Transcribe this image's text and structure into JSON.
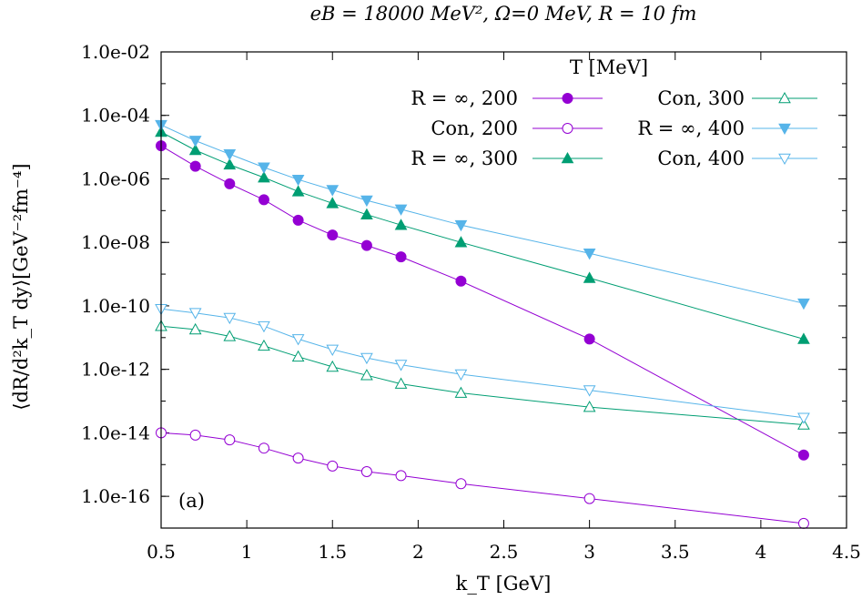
{
  "chart_data": {
    "type": "line",
    "title": "eB = 18000 MeV², Ω=0 MeV, R = 10 fm",
    "xlabel": "k_T [GeV]",
    "ylabel": "⟨dR/d²k_T dy⟩[GeV⁻²fm⁻⁴]",
    "panel_label": "(a)",
    "legend_title": "T [MeV]",
    "legend_placement": "top-right",
    "yscale": "log",
    "xlim": [
      0.5,
      4.5
    ],
    "ylim": [
      1e-17,
      0.01
    ],
    "x_ticks": [
      "0.5",
      "1",
      "1.5",
      "2",
      "2.5",
      "3",
      "3.5",
      "4",
      "4.5"
    ],
    "y_ticks": [
      "1.0e-16",
      "1.0e-14",
      "1.0e-12",
      "1.0e-10",
      "1.0e-08",
      "1.0e-06",
      "1.0e-04",
      "1.0e-02"
    ],
    "x": [
      0.5,
      0.7,
      0.9,
      1.1,
      1.3,
      1.5,
      1.7,
      1.9,
      2.25,
      3.0,
      4.25
    ],
    "series": [
      {
        "name": "R = ∞, 200",
        "color": "#9400d3",
        "marker": "circle-filled",
        "values": [
          1.1e-05,
          2.5e-06,
          7e-07,
          2.2e-07,
          5e-08,
          1.7e-08,
          8e-09,
          3.5e-09,
          6e-10,
          9e-12,
          2e-15
        ]
      },
      {
        "name": "Con, 200",
        "color": "#9400d3",
        "marker": "circle-open",
        "values": [
          1e-14,
          8.5e-15,
          6e-15,
          3.3e-15,
          1.6e-15,
          9e-16,
          6e-16,
          4.5e-16,
          2.5e-16,
          8.5e-17,
          1.4e-17
        ]
      },
      {
        "name": "R = ∞, 300",
        "color": "#009e73",
        "marker": "triangle-up-filled",
        "values": [
          3e-05,
          8e-06,
          2.8e-06,
          1.1e-06,
          4e-07,
          1.7e-07,
          7.5e-08,
          3.5e-08,
          1e-08,
          7.5e-10,
          9e-12
        ]
      },
      {
        "name": "Con, 300",
        "color": "#009e73",
        "marker": "triangle-up-open",
        "values": [
          2.3e-11,
          1.8e-11,
          1.1e-11,
          5.5e-12,
          2.5e-12,
          1.2e-12,
          6.5e-13,
          3.5e-13,
          1.8e-13,
          6.5e-14,
          1.8e-14
        ]
      },
      {
        "name": "R = ∞, 400",
        "color": "#56b4e9",
        "marker": "triangle-down-filled",
        "values": [
          5e-05,
          1.6e-05,
          6e-06,
          2.3e-06,
          9.5e-07,
          4.5e-07,
          2.1e-07,
          1.1e-07,
          3.5e-08,
          4.5e-09,
          1.2e-10
        ]
      },
      {
        "name": "Con, 400",
        "color": "#56b4e9",
        "marker": "triangle-down-open",
        "values": [
          8e-11,
          6e-11,
          4.2e-11,
          2.3e-11,
          9e-12,
          4.2e-12,
          2.3e-12,
          1.4e-12,
          7e-13,
          2.2e-13,
          3e-14
        ]
      }
    ]
  }
}
